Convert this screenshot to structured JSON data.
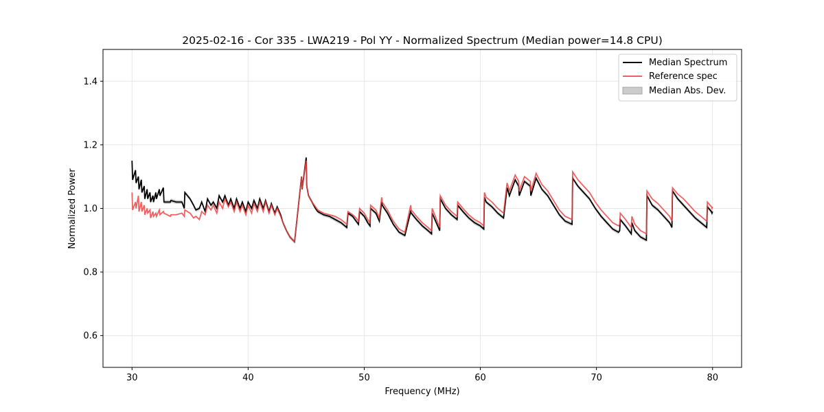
{
  "chart_data": {
    "type": "line",
    "title": "2025-02-16 - Cor 335 - LWA219 - Pol YY - Normalized Spectrum (Median power=14.8 CPU)",
    "xlabel": "Frequency (MHz)",
    "ylabel": "Normalized Power",
    "xlim": [
      27.5,
      82.5
    ],
    "ylim": [
      0.5,
      1.5
    ],
    "xticks": [
      30,
      40,
      50,
      60,
      70,
      80
    ],
    "yticks": [
      0.6,
      0.8,
      1.0,
      1.2,
      1.4
    ],
    "xtick_labels": [
      "30",
      "40",
      "50",
      "60",
      "70",
      "80"
    ],
    "ytick_labels": [
      "0.6",
      "0.8",
      "1.0",
      "1.2",
      "1.4"
    ],
    "grid": true,
    "legend_position": "top-right",
    "legend": {
      "median": "Median Spectrum",
      "reference": "Reference spec",
      "mad": "Median Abs. Dev."
    },
    "series": [
      {
        "name": "Median Spectrum",
        "color": "#000000",
        "x": [
          30.0,
          30.05,
          30.3,
          30.35,
          30.55,
          30.6,
          30.8,
          30.85,
          31.05,
          31.1,
          31.3,
          31.35,
          31.55,
          31.6,
          31.8,
          31.85,
          32.05,
          32.1,
          32.35,
          32.4,
          32.7,
          32.75,
          33.3,
          33.35,
          33.8,
          34.3,
          34.5,
          34.55,
          35.0,
          35.3,
          35.5,
          35.8,
          36.0,
          36.3,
          36.5,
          36.8,
          37.0,
          37.3,
          37.5,
          37.8,
          38.0,
          38.3,
          38.5,
          38.8,
          39.0,
          39.3,
          39.5,
          39.8,
          40.0,
          40.3,
          40.5,
          40.8,
          41.0,
          41.3,
          41.5,
          41.8,
          42.0,
          42.3,
          42.5,
          42.8,
          43.0,
          43.3,
          43.6,
          44.0,
          44.6,
          44.65,
          45.0,
          45.05,
          45.2,
          45.5,
          45.8,
          46.0,
          46.5,
          47.0,
          47.5,
          48.0,
          48.5,
          48.6,
          49.0,
          49.3,
          49.5,
          49.6,
          50.0,
          50.3,
          50.5,
          50.55,
          51.0,
          51.3,
          51.5,
          51.55,
          52.0,
          52.5,
          53.0,
          53.5,
          54.0,
          54.05,
          54.5,
          55.0,
          55.5,
          55.8,
          55.85,
          56.5,
          56.55,
          57.0,
          57.5,
          58.0,
          58.05,
          58.5,
          59.0,
          59.5,
          60.0,
          60.3,
          60.35,
          60.5,
          61.0,
          61.5,
          62.0,
          62.3,
          62.35,
          62.5,
          63.0,
          63.3,
          63.35,
          63.8,
          64.3,
          64.35,
          64.8,
          65.3,
          65.8,
          66.3,
          66.8,
          67.3,
          67.9,
          67.95,
          68.4,
          68.9,
          69.4,
          69.9,
          70.4,
          70.9,
          71.4,
          71.9,
          72.0,
          72.05,
          72.5,
          72.9,
          73.0,
          73.05,
          73.3,
          73.8,
          74.3,
          74.35,
          74.8,
          75.3,
          75.8,
          76.3,
          76.5,
          76.55,
          77.0,
          77.5,
          78.0,
          78.5,
          79.0,
          79.5,
          79.55,
          79.9,
          79.95,
          80.0
        ],
        "values": [
          1.15,
          1.09,
          1.12,
          1.08,
          1.1,
          1.06,
          1.09,
          1.05,
          1.07,
          1.03,
          1.06,
          1.03,
          1.05,
          1.02,
          1.04,
          1.02,
          1.05,
          1.03,
          1.06,
          1.04,
          1.065,
          1.02,
          1.02,
          1.025,
          1.02,
          1.02,
          1.0,
          1.05,
          1.03,
          1.01,
          0.995,
          1.0,
          1.02,
          0.99,
          1.03,
          1.01,
          1.02,
          1.0,
          1.04,
          1.02,
          1.04,
          1.01,
          1.03,
          1.0,
          1.03,
          1.0,
          1.02,
          0.99,
          1.02,
          1.0,
          1.025,
          1.0,
          1.03,
          1.0,
          1.025,
          0.99,
          1.015,
          0.985,
          1.005,
          0.98,
          0.955,
          0.93,
          0.91,
          0.895,
          1.1,
          1.06,
          1.16,
          1.07,
          1.04,
          1.02,
          1.0,
          0.99,
          0.98,
          0.975,
          0.965,
          0.955,
          0.94,
          0.985,
          0.975,
          0.96,
          0.95,
          0.99,
          0.975,
          0.955,
          0.945,
          1.0,
          0.985,
          0.96,
          1.02,
          1.01,
          0.985,
          0.95,
          0.925,
          0.915,
          0.99,
          0.985,
          0.965,
          0.945,
          0.93,
          0.92,
          0.985,
          0.93,
          1.03,
          1.0,
          0.98,
          0.965,
          1.01,
          0.99,
          0.97,
          0.955,
          0.945,
          0.935,
          1.035,
          1.02,
          1.005,
          0.985,
          0.97,
          1.065,
          1.06,
          1.04,
          1.09,
          1.07,
          1.04,
          1.085,
          1.07,
          1.04,
          1.095,
          1.06,
          1.04,
          1.01,
          0.98,
          0.96,
          0.95,
          1.095,
          1.07,
          1.05,
          1.03,
          1.0,
          0.975,
          0.955,
          0.935,
          0.925,
          0.93,
          0.965,
          0.945,
          0.925,
          0.92,
          0.955,
          0.93,
          0.91,
          0.9,
          1.04,
          1.01,
          0.995,
          0.975,
          0.955,
          0.94,
          1.055,
          1.03,
          1.01,
          0.99,
          0.97,
          0.955,
          0.94,
          1.005,
          0.99,
          0.985,
          0.99
        ]
      },
      {
        "name": "Reference spec",
        "color": "#ee4444",
        "x": [
          30.0,
          30.05,
          30.3,
          30.35,
          30.55,
          30.6,
          30.8,
          30.85,
          31.05,
          31.1,
          31.3,
          31.35,
          31.55,
          31.6,
          31.8,
          31.85,
          32.05,
          32.1,
          32.35,
          32.4,
          32.7,
          32.75,
          33.3,
          33.35,
          33.8,
          34.3,
          34.5,
          34.55,
          35.0,
          35.3,
          35.5,
          35.8,
          36.0,
          36.3,
          36.5,
          36.8,
          37.0,
          37.3,
          37.5,
          37.8,
          38.0,
          38.3,
          38.5,
          38.8,
          39.0,
          39.3,
          39.5,
          39.8,
          40.0,
          40.3,
          40.5,
          40.8,
          41.0,
          41.3,
          41.5,
          41.8,
          42.0,
          42.3,
          42.5,
          42.8,
          43.0,
          43.3,
          43.6,
          44.0,
          44.6,
          44.65,
          45.0,
          45.05,
          45.2,
          45.5,
          45.8,
          46.0,
          46.5,
          47.0,
          47.5,
          48.0,
          48.5,
          48.6,
          49.0,
          49.3,
          49.5,
          49.6,
          50.0,
          50.3,
          50.5,
          50.55,
          51.0,
          51.3,
          51.5,
          51.55,
          52.0,
          52.5,
          53.0,
          53.5,
          54.0,
          54.05,
          54.5,
          55.0,
          55.5,
          55.8,
          55.85,
          56.5,
          56.55,
          57.0,
          57.5,
          58.0,
          58.05,
          58.5,
          59.0,
          59.5,
          60.0,
          60.3,
          60.35,
          60.5,
          61.0,
          61.5,
          62.0,
          62.3,
          62.35,
          62.5,
          63.0,
          63.3,
          63.35,
          63.8,
          64.3,
          64.35,
          64.8,
          65.3,
          65.8,
          66.3,
          66.8,
          67.3,
          67.9,
          67.95,
          68.4,
          68.9,
          69.4,
          69.9,
          70.4,
          70.9,
          71.4,
          71.9,
          72.0,
          72.05,
          72.5,
          72.9,
          73.0,
          73.05,
          73.3,
          73.8,
          74.3,
          74.35,
          74.8,
          75.3,
          75.8,
          76.3,
          76.5,
          76.55,
          77.0,
          77.5,
          78.0,
          78.5,
          79.0,
          79.5,
          79.55,
          79.9,
          79.95,
          80.0
        ],
        "values": [
          1.05,
          0.995,
          1.02,
          1.0,
          1.04,
          0.99,
          1.02,
          0.99,
          1.01,
          0.98,
          1.0,
          0.985,
          0.995,
          0.97,
          0.99,
          0.975,
          0.985,
          0.975,
          0.995,
          0.98,
          0.99,
          0.985,
          0.975,
          0.98,
          0.98,
          0.985,
          0.975,
          0.995,
          0.985,
          0.97,
          0.975,
          0.965,
          0.99,
          0.98,
          1.01,
          0.995,
          1.01,
          0.985,
          1.02,
          1.0,
          1.03,
          1.005,
          1.02,
          0.99,
          1.02,
          0.99,
          1.01,
          0.98,
          1.01,
          0.985,
          1.015,
          0.99,
          1.02,
          0.99,
          1.02,
          0.985,
          1.01,
          0.98,
          1.0,
          0.975,
          0.955,
          0.93,
          0.91,
          0.895,
          1.1,
          1.06,
          1.15,
          1.07,
          1.04,
          1.02,
          1.005,
          0.995,
          0.985,
          0.98,
          0.975,
          0.965,
          0.95,
          0.99,
          0.98,
          0.97,
          0.96,
          1.0,
          0.985,
          0.965,
          0.955,
          1.01,
          0.995,
          0.97,
          1.035,
          1.02,
          0.995,
          0.96,
          0.935,
          0.925,
          1.01,
          0.995,
          0.975,
          0.955,
          0.94,
          0.93,
          1.0,
          0.94,
          1.04,
          1.01,
          0.99,
          0.975,
          1.02,
          1.0,
          0.98,
          0.965,
          0.955,
          0.945,
          1.05,
          1.035,
          1.02,
          1.0,
          0.985,
          1.08,
          1.075,
          1.055,
          1.105,
          1.085,
          1.055,
          1.1,
          1.085,
          1.055,
          1.11,
          1.075,
          1.055,
          1.025,
          0.995,
          0.975,
          0.965,
          1.115,
          1.09,
          1.07,
          1.05,
          1.02,
          0.995,
          0.975,
          0.955,
          0.945,
          0.95,
          0.985,
          0.965,
          0.945,
          0.94,
          0.975,
          0.95,
          0.93,
          0.92,
          1.055,
          1.03,
          1.015,
          0.995,
          0.975,
          0.96,
          1.065,
          1.045,
          1.03,
          1.01,
          0.99,
          0.975,
          0.96,
          1.02,
          1.005,
          1.0,
          1.005
        ]
      }
    ],
    "mad_band": {
      "name": "Median Abs. Dev.",
      "color": "#999999",
      "half_width": 0.006
    }
  }
}
